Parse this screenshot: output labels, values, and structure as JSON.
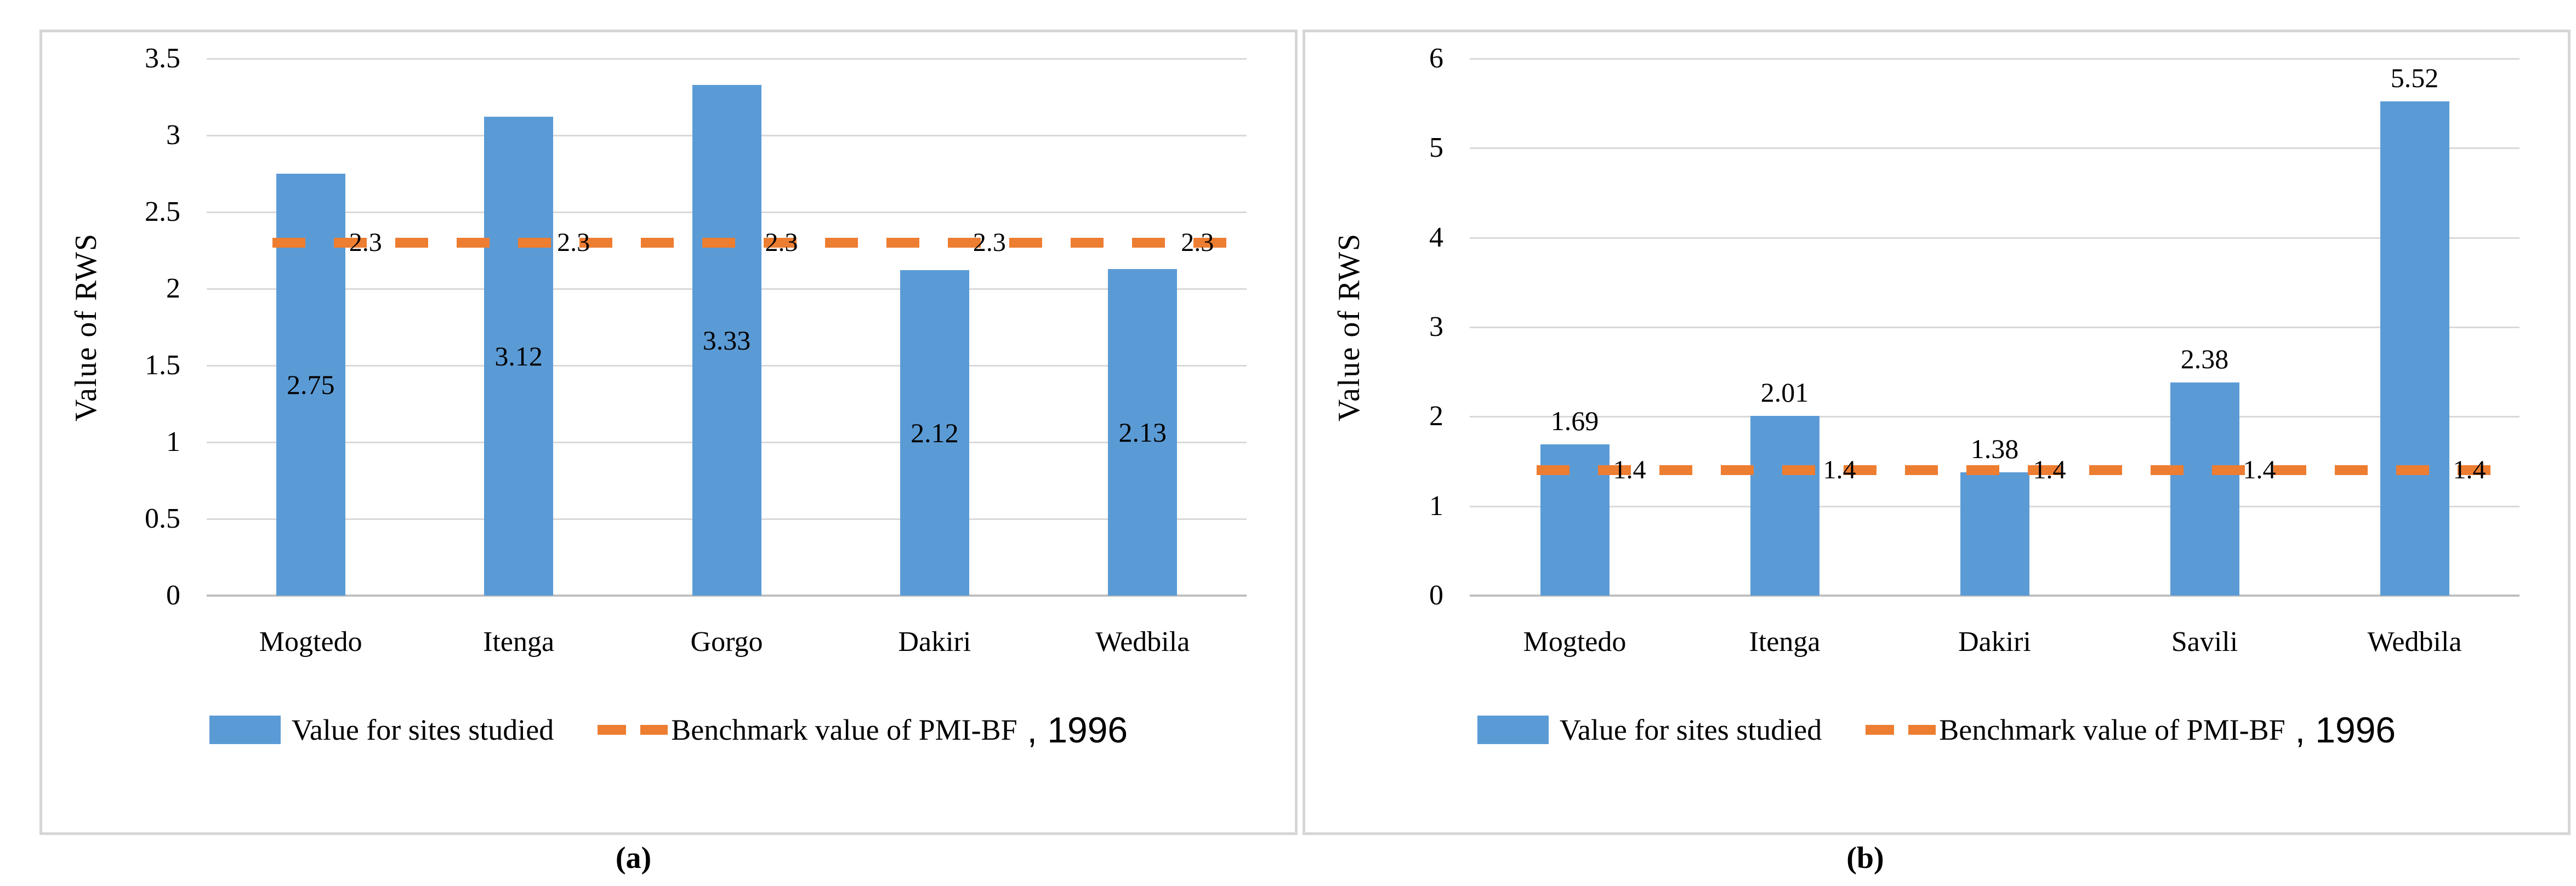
{
  "colors": {
    "background": "#ffffff",
    "panel_border": "#d6d6d6",
    "gridline": "#d9d9d9",
    "axis_line": "#bfbfbf",
    "bar": "#5b9bd5",
    "benchmark": "#ed7d31",
    "text": "#000000"
  },
  "chart_data": [
    {
      "id": "a",
      "type": "bar",
      "caption": "(a)",
      "title": "",
      "ylabel": "Value of RWS",
      "xlabel": "",
      "ylim": [
        0,
        3.5
      ],
      "yticks": [
        0,
        0.5,
        1,
        1.5,
        2,
        2.5,
        3,
        3.5
      ],
      "ytick_labels": [
        "0",
        "0.5",
        "1",
        "1.5",
        "2",
        "2.5",
        "3",
        "3.5"
      ],
      "categories": [
        "Mogtedo",
        "Itenga",
        "Gorgo",
        "Dakiri",
        "Wedbila"
      ],
      "grid": true,
      "legend_position": "bottom",
      "series": [
        {
          "name": "Value for sites studied",
          "type": "column",
          "color": "#5b9bd5",
          "values": [
            2.75,
            3.12,
            3.33,
            2.12,
            2.13
          ],
          "data_labels": [
            "2.75",
            "3.12",
            "3.33",
            "2.12",
            "2.13"
          ],
          "data_label_position": "inside-center"
        },
        {
          "name": "Benchmark value of PMI-BF",
          "type": "line-dashed",
          "color": "#ed7d31",
          "benchmark_value": 2.3,
          "values": [
            2.3,
            2.3,
            2.3,
            2.3,
            2.3
          ],
          "data_labels": [
            "2.3",
            "2.3",
            "2.3",
            "2.3",
            "2.3"
          ]
        }
      ],
      "legend_suffix": ", 1996"
    },
    {
      "id": "b",
      "type": "bar",
      "caption": "(b)",
      "title": "",
      "ylabel": "Value of RWS",
      "xlabel": "",
      "ylim": [
        0,
        6
      ],
      "yticks": [
        0,
        1,
        2,
        3,
        4,
        5,
        6
      ],
      "ytick_labels": [
        "0",
        "1",
        "2",
        "3",
        "4",
        "5",
        "6"
      ],
      "categories": [
        "Mogtedo",
        "Itenga",
        "Dakiri",
        "Savili",
        "Wedbila"
      ],
      "grid": true,
      "legend_position": "bottom",
      "series": [
        {
          "name": "Value for sites studied",
          "type": "column",
          "color": "#5b9bd5",
          "values": [
            1.69,
            2.01,
            1.38,
            2.38,
            5.52
          ],
          "data_labels": [
            "1.69",
            "2.01",
            "1.38",
            "2.38",
            "5.52"
          ],
          "data_label_position": "outside-end"
        },
        {
          "name": "Benchmark value of PMI-BF",
          "type": "line-dashed",
          "color": "#ed7d31",
          "benchmark_value": 1.4,
          "values": [
            1.4,
            1.4,
            1.4,
            1.4,
            1.4
          ],
          "data_labels": [
            "1.4",
            "1.4",
            "1.4",
            "1.4",
            "1.4"
          ]
        }
      ],
      "legend_suffix": ", 1996"
    }
  ]
}
